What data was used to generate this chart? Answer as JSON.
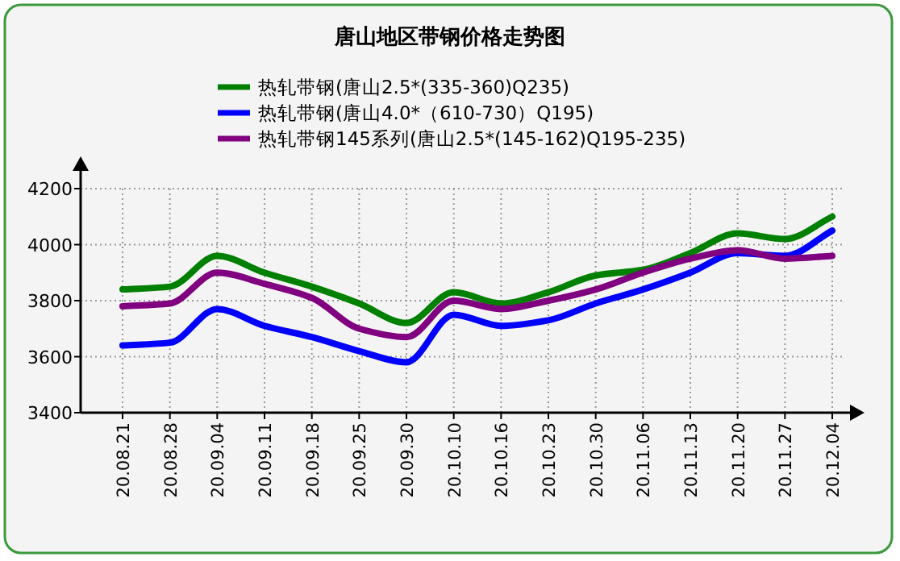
{
  "chart_data": {
    "type": "line",
    "title": "唐山地区带钢价格走势图",
    "categories": [
      "20.08.21",
      "20.08.28",
      "20.09.04",
      "20.09.11",
      "20.09.18",
      "20.09.25",
      "20.09.30",
      "20.10.10",
      "20.10.16",
      "20.10.23",
      "20.10.30",
      "20.11.06",
      "20.11.13",
      "20.11.20",
      "20.11.27",
      "20.12.04"
    ],
    "series": [
      {
        "name": "热轧带钢(唐山2.5*(335-360)Q235)",
        "color": "#008000",
        "values": [
          3840,
          3850,
          3960,
          3900,
          3850,
          3790,
          3720,
          3830,
          3790,
          3830,
          3890,
          3910,
          3970,
          4040,
          4020,
          4100
        ]
      },
      {
        "name": "热轧带钢(唐山4.0*（610-730）Q195)",
        "color": "#0000ff",
        "values": [
          3640,
          3650,
          3770,
          3710,
          3670,
          3620,
          3580,
          3750,
          3710,
          3730,
          3790,
          3840,
          3900,
          3970,
          3960,
          4050
        ]
      },
      {
        "name": "热轧带钢145系列(唐山2.5*(145-162)Q195-235)",
        "color": "#800080",
        "values": [
          3780,
          3790,
          3900,
          3860,
          3810,
          3700,
          3670,
          3800,
          3770,
          3800,
          3840,
          3900,
          3950,
          3980,
          3950,
          3960
        ]
      }
    ],
    "ylim": [
      3400,
      4200
    ],
    "yticks": [
      3400,
      3600,
      3800,
      4000,
      4200
    ],
    "grid": true,
    "legend": "top",
    "line_style": "solid",
    "marker": "none"
  }
}
